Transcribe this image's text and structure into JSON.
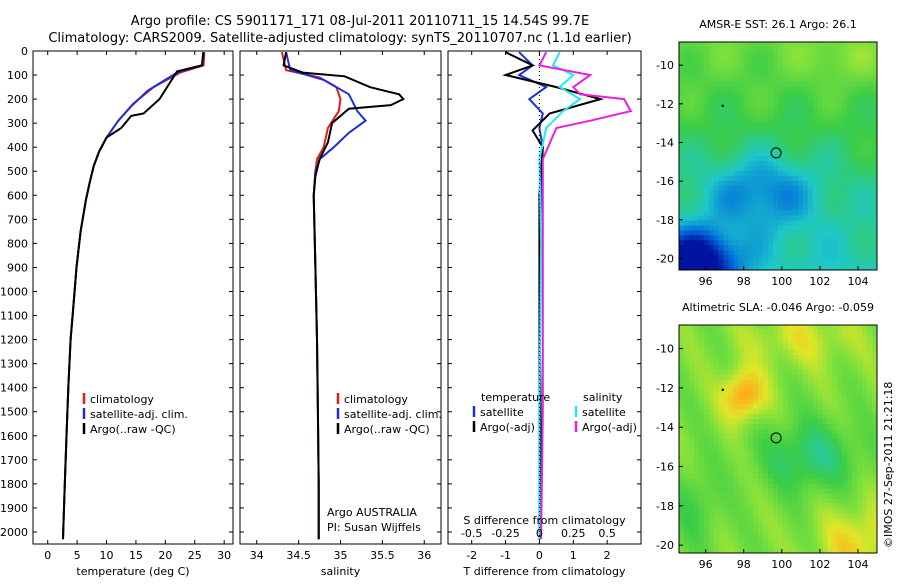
{
  "title_line1": "Argo profile: CS 5901171_171 08-Jul-2011 20110711_15 14.54S 99.7E",
  "title_line2": "Climatology: CARS2009. Satellite-adjusted climatology: synTS_20110707.nc (1.1d earlier)",
  "watermark": "©IMOS 27-Sep-2011 21:21:18",
  "colors": {
    "climatology": "#e41a1c",
    "satellite": "#1f2fd8",
    "argo": "#000000",
    "sat_s": "#22e8f0",
    "argo_s": "#e820e0"
  },
  "chart_data": [
    {
      "type": "line",
      "name": "temperature",
      "xlabel": "temperature (deg C)",
      "ylabel": "",
      "xlim": [
        -2.5,
        31.5
      ],
      "ylim": [
        2050,
        0
      ],
      "xticks": [
        "0",
        "5",
        "10",
        "15",
        "20",
        "25",
        "30"
      ],
      "xtick_values": [
        0,
        5,
        10,
        15,
        20,
        25,
        30
      ],
      "yticks": [
        "0",
        "100",
        "200",
        "300",
        "400",
        "500",
        "600",
        "700",
        "800",
        "900",
        "1000",
        "1100",
        "1200",
        "1300",
        "1400",
        "1500",
        "1600",
        "1700",
        "1800",
        "1900",
        "2000"
      ],
      "ytick_values": [
        0,
        100,
        200,
        300,
        400,
        500,
        600,
        700,
        800,
        900,
        1000,
        1100,
        1200,
        1300,
        1400,
        1500,
        1600,
        1700,
        1800,
        1900,
        2000
      ],
      "legend": [
        "climatology",
        "satellite-adj. clim.",
        "Argo(..raw -QC)"
      ],
      "series": [
        {
          "name": "climatology",
          "color": "#e41a1c",
          "x": [
            26.6,
            26.5,
            22.5,
            18,
            14.5,
            12,
            10,
            8.7,
            7.8,
            7.1,
            6.5,
            5.6,
            4.9,
            4.4,
            3.9,
            3.5,
            3.2,
            2.9,
            2.7,
            2.6
          ],
          "y": [
            5,
            60,
            90,
            150,
            220,
            290,
            360,
            420,
            480,
            550,
            620,
            750,
            900,
            1050,
            1200,
            1400,
            1600,
            1800,
            1950,
            2030
          ]
        },
        {
          "name": "satellite-adj. clim.",
          "color": "#1f2fd8",
          "x": [
            26.4,
            26.3,
            22,
            17,
            14.2,
            12,
            10,
            8.7,
            7.8,
            7.1,
            6.5,
            5.6,
            4.9,
            4.4,
            3.9,
            3.5,
            3.2,
            2.9,
            2.7,
            2.6
          ],
          "y": [
            5,
            60,
            90,
            165,
            230,
            290,
            360,
            420,
            480,
            550,
            620,
            750,
            900,
            1050,
            1200,
            1400,
            1600,
            1800,
            1950,
            2030
          ]
        },
        {
          "name": "Argo(..raw -QC)",
          "color": "#000000",
          "x": [
            26.5,
            26.2,
            22,
            19,
            16.3,
            14.2,
            12.5,
            10,
            8.7,
            7.8,
            7.1,
            6.5,
            5.6,
            4.9,
            4.4,
            3.9,
            3.5,
            3.2,
            2.9,
            2.7,
            2.6
          ],
          "y": [
            5,
            60,
            85,
            200,
            260,
            270,
            320,
            360,
            420,
            480,
            550,
            620,
            750,
            900,
            1050,
            1200,
            1400,
            1600,
            1800,
            1950,
            2030
          ]
        }
      ]
    },
    {
      "type": "line",
      "name": "salinity",
      "xlabel": "salinity",
      "xlim": [
        33.8,
        36.2
      ],
      "ylim": [
        2050,
        0
      ],
      "xticks": [
        "34",
        "34.5",
        "35",
        "35.5",
        "36"
      ],
      "xtick_values": [
        34,
        34.5,
        35,
        35.5,
        36
      ],
      "legend": [
        "climatology",
        "satellite-adj. clim.",
        "Argo(..raw -QC)"
      ],
      "annotation_line1": "Argo AUSTRALIA",
      "annotation_line2": "PI: Susan Wijffels",
      "series": [
        {
          "name": "climatology",
          "color": "#e41a1c",
          "x": [
            34.3,
            34.35,
            34.75,
            34.95,
            35.0,
            34.98,
            34.85,
            34.8,
            34.72,
            34.7,
            34.68,
            34.7,
            34.72,
            34.73,
            34.74,
            34.74
          ],
          "y": [
            5,
            80,
            110,
            150,
            200,
            250,
            320,
            400,
            450,
            500,
            600,
            900,
            1200,
            1500,
            1800,
            2030
          ]
        },
        {
          "name": "satellite-adj. clim.",
          "color": "#1f2fd8",
          "x": [
            34.35,
            34.4,
            34.8,
            35.1,
            35.2,
            35.3,
            35.1,
            34.92,
            34.75,
            34.7,
            34.68,
            34.7,
            34.72,
            34.73,
            34.74,
            34.74
          ],
          "y": [
            5,
            80,
            120,
            180,
            250,
            290,
            340,
            400,
            450,
            500,
            600,
            900,
            1200,
            1500,
            1800,
            2030
          ]
        },
        {
          "name": "Argo(..raw -QC)",
          "color": "#000000",
          "x": [
            34.35,
            34.32,
            34.55,
            35.05,
            35.35,
            35.7,
            35.75,
            35.6,
            35.1,
            34.9,
            34.85,
            34.75,
            34.7,
            34.68,
            34.7,
            34.72,
            34.73,
            34.74,
            34.74
          ],
          "y": [
            5,
            60,
            90,
            105,
            150,
            180,
            200,
            225,
            240,
            300,
            380,
            450,
            520,
            600,
            900,
            1200,
            1500,
            1800,
            2030
          ]
        }
      ]
    },
    {
      "type": "line",
      "name": "difference",
      "xlabel": "T difference from climatology",
      "xlabel_top": "S difference from climatology",
      "xlim": [
        -2.7,
        3.0
      ],
      "ylim": [
        2050,
        0
      ],
      "xticks": [
        "-2",
        "-1",
        "0",
        "1",
        "2"
      ],
      "xtick_values": [
        -2,
        -1,
        0,
        1,
        2
      ],
      "sticks": [
        "-0.5",
        "-0.25",
        "0",
        "0.25",
        "0.5"
      ],
      "stick_values": [
        -2,
        -1,
        0,
        1,
        2
      ],
      "legend_headers": [
        "temperature",
        "salinity"
      ],
      "legend": [
        "satellite",
        "Argo(-adj)",
        "satellite",
        "Argo(-adj)"
      ],
      "series": [
        {
          "name": "T satellite",
          "color": "#1f2fd8",
          "x": [
            -0.6,
            -0.2,
            -0.6,
            0.2,
            -0.3,
            0.1,
            0.0,
            0.1,
            0.05,
            0.0,
            0.0,
            0.0
          ],
          "y": [
            5,
            60,
            100,
            150,
            200,
            260,
            320,
            400,
            600,
            1000,
            1500,
            2030
          ]
        },
        {
          "name": "T Argo(-adj)",
          "color": "#000000",
          "x": [
            -1.0,
            -0.2,
            -1.0,
            0.5,
            1.8,
            0.3,
            -0.2,
            0.1,
            0.0,
            0.0,
            0.05,
            0.0
          ],
          "y": [
            5,
            60,
            100,
            150,
            200,
            260,
            330,
            400,
            600,
            1000,
            1700,
            2030
          ]
        },
        {
          "name": "S satellite",
          "color": "#22e8f0",
          "x": [
            0.6,
            0.4,
            1.0,
            0.6,
            1.2,
            0.7,
            0.2,
            0.0,
            0.05,
            0.0,
            0.0
          ],
          "y": [
            5,
            60,
            100,
            150,
            200,
            250,
            320,
            450,
            800,
            1500,
            2030
          ]
        },
        {
          "name": "S Argo(-adj)",
          "color": "#e820e0",
          "x": [
            0.2,
            0.0,
            1.5,
            1.0,
            1.2,
            2.5,
            2.7,
            1.5,
            0.5,
            0.1,
            0.1,
            0.05
          ],
          "y": [
            5,
            60,
            100,
            150,
            180,
            200,
            250,
            290,
            320,
            450,
            1500,
            2030
          ]
        }
      ]
    },
    {
      "type": "heatmap",
      "name": "sst map",
      "title": "AMSR-E SST: 26.1 Argo: 26.1",
      "xlim": [
        94.6,
        105
      ],
      "ylim": [
        -20.6,
        -8.8
      ],
      "xticks": [
        "96",
        "98",
        "100",
        "102",
        "104"
      ],
      "xtick_values": [
        96,
        98,
        100,
        102,
        104
      ],
      "yticks": [
        "-10",
        "-12",
        "-14",
        "-16",
        "-18",
        "-20"
      ],
      "ytick_values": [
        -10,
        -12,
        -14,
        -16,
        -18,
        -20
      ],
      "float_position": [
        99.7,
        -14.54
      ]
    },
    {
      "type": "heatmap",
      "name": "sla map",
      "title": "Altimetric SLA: -0.046 Argo: -0.059",
      "xlim": [
        94.6,
        105
      ],
      "ylim": [
        -20.4,
        -8.8
      ],
      "xticks": [
        "96",
        "98",
        "100",
        "102",
        "104"
      ],
      "xtick_values": [
        96,
        98,
        100,
        102,
        104
      ],
      "yticks": [
        "-10",
        "-12",
        "-14",
        "-16",
        "-18",
        "-20"
      ],
      "ytick_values": [
        -10,
        -12,
        -14,
        -16,
        -18,
        -20
      ],
      "float_position": [
        99.7,
        -14.54
      ]
    }
  ]
}
